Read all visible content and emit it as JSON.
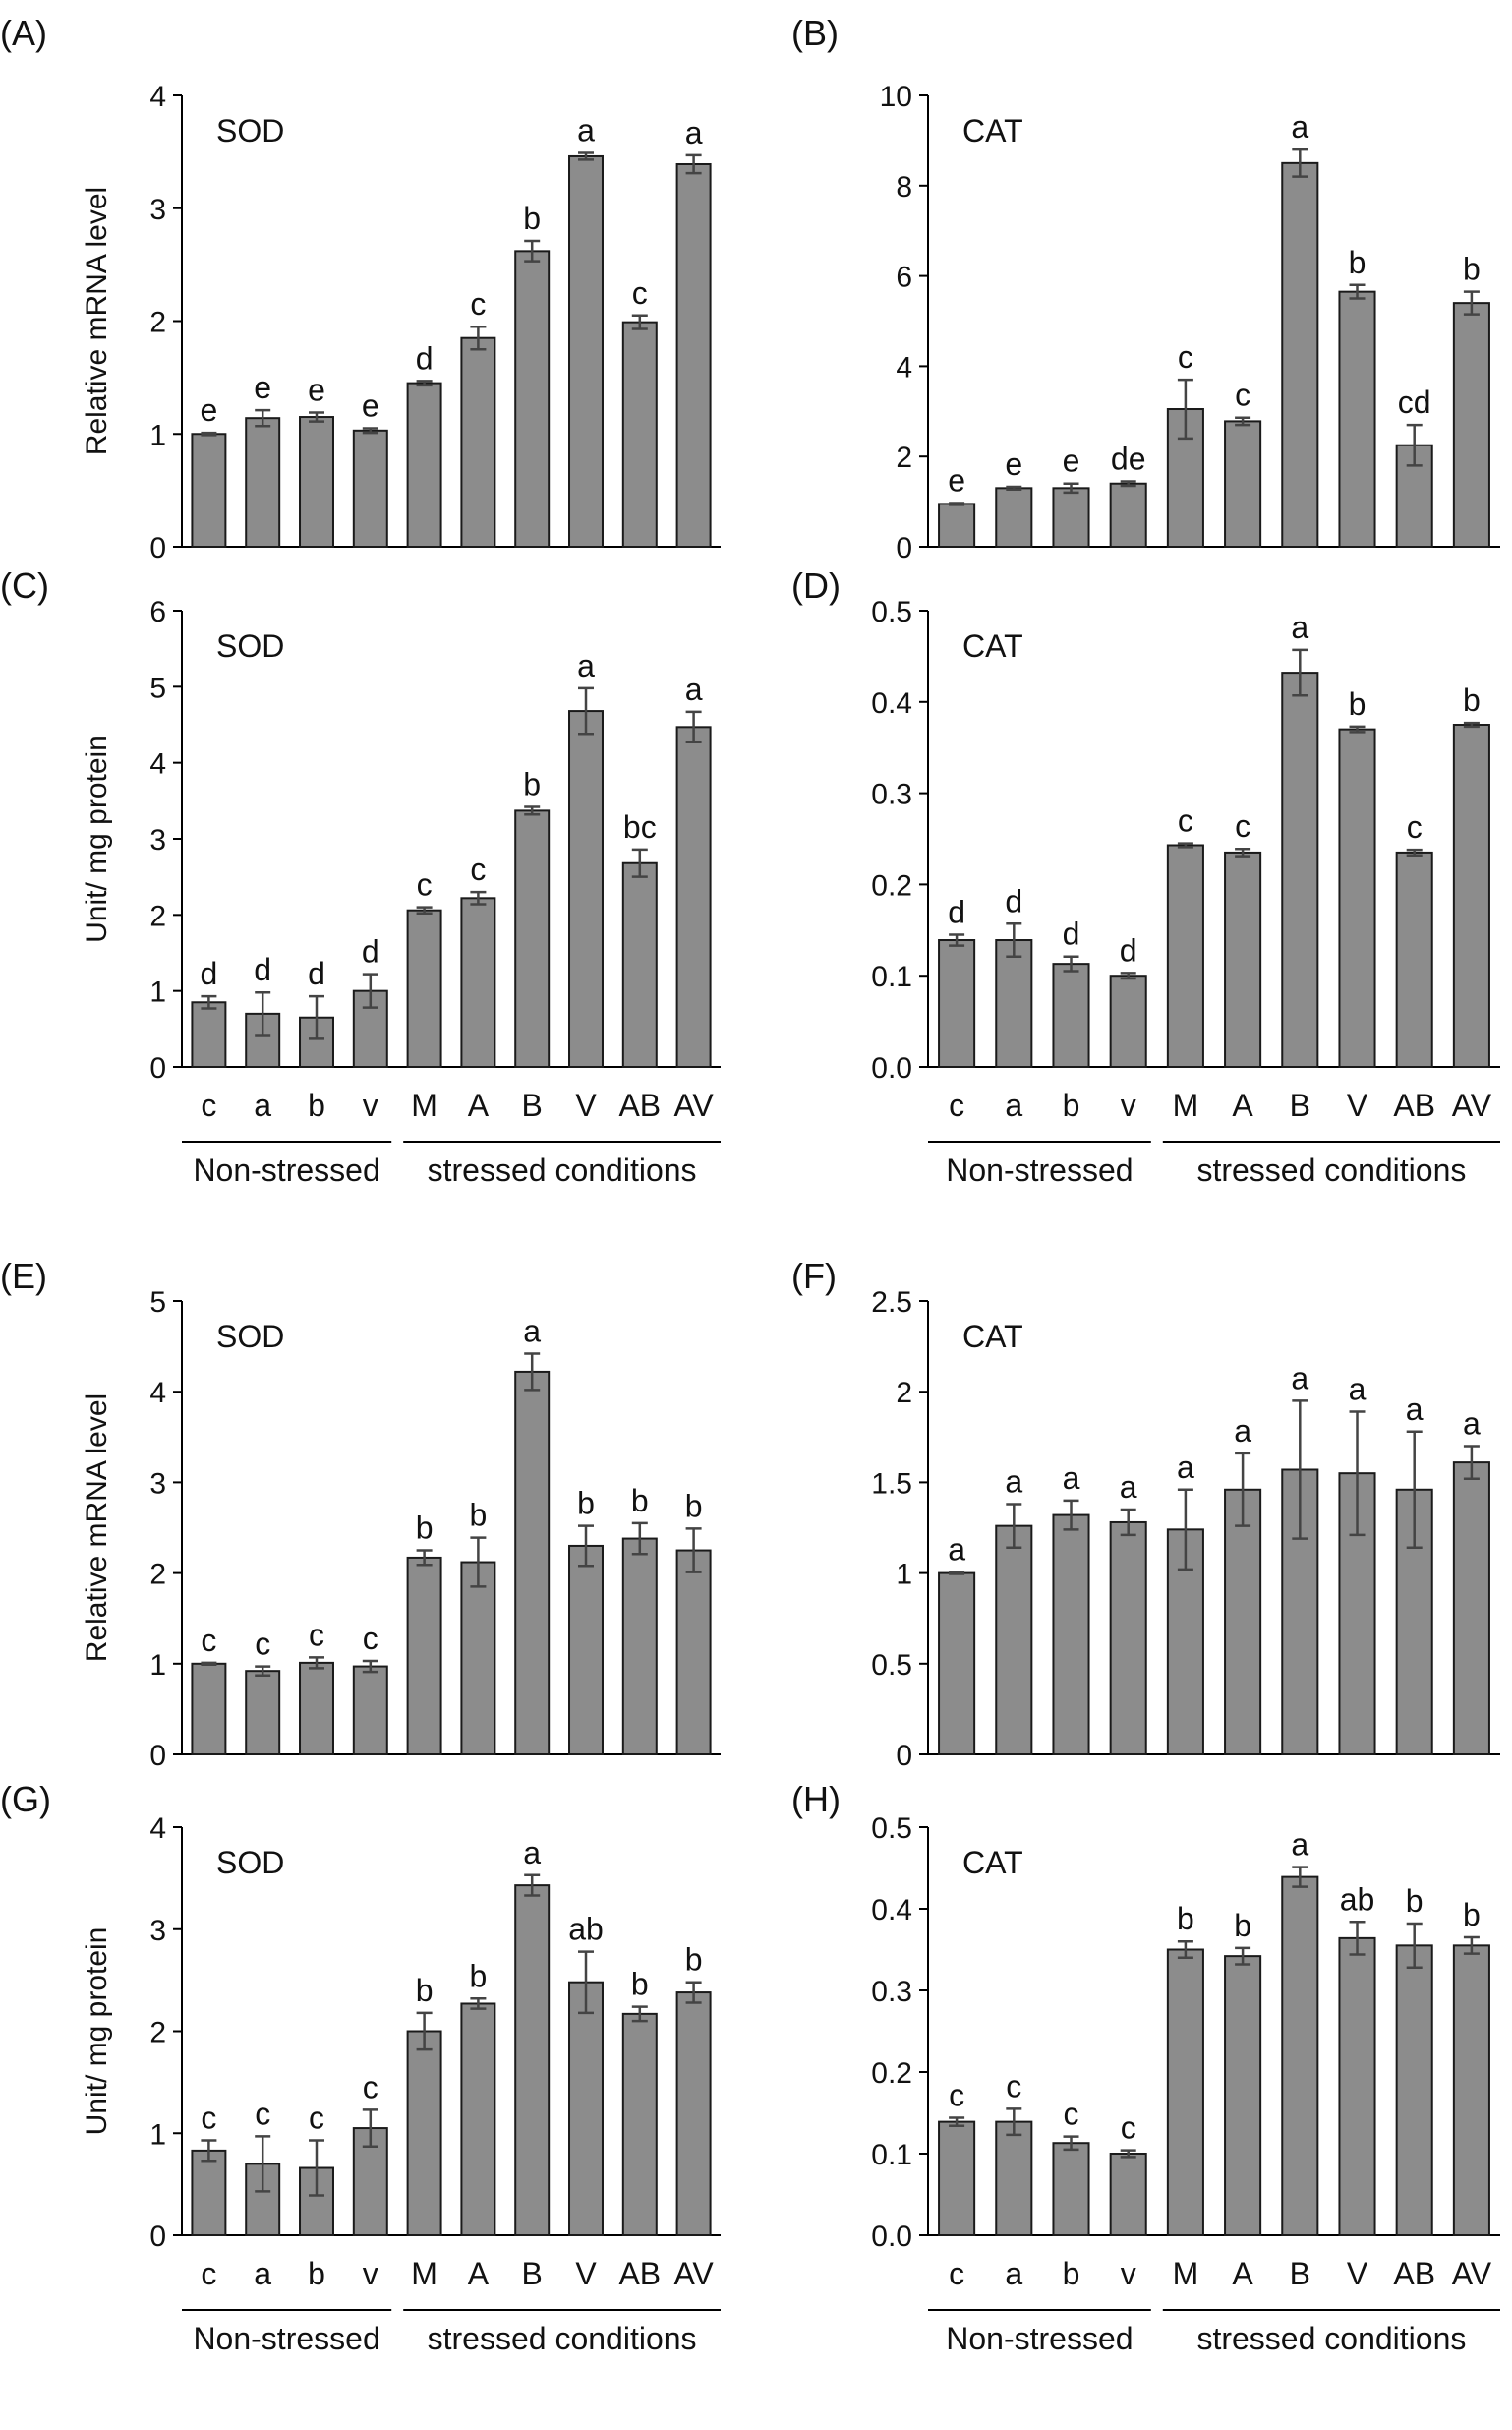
{
  "figure": {
    "group_labels": [
      "Non-stressed",
      "stressed conditions"
    ]
  },
  "style": {
    "bar_color": "#8c8c8c",
    "error_color": "#444444"
  },
  "chart_data": [
    {
      "panel": "(A)",
      "type": "bar",
      "title": "SOD",
      "ylabel": "Relative mRNA level",
      "ylim": [
        0,
        4
      ],
      "yticks": [
        "0",
        "1",
        "2",
        "3",
        "4"
      ],
      "ytick_values": [
        0,
        1,
        2,
        3,
        4
      ],
      "categories": [
        "c",
        "a",
        "b",
        "v",
        "M",
        "A",
        "B",
        "V",
        "AB",
        "AV"
      ],
      "show_categories": false,
      "values": [
        1.0,
        1.14,
        1.15,
        1.03,
        1.45,
        1.85,
        2.62,
        3.46,
        1.99,
        3.39
      ],
      "errors": [
        0.01,
        0.07,
        0.04,
        0.02,
        0.02,
        0.1,
        0.09,
        0.03,
        0.06,
        0.08
      ],
      "letters": [
        "e",
        "e",
        "e",
        "e",
        "d",
        "c",
        "b",
        "a",
        "c",
        "a"
      ]
    },
    {
      "panel": "(B)",
      "type": "bar",
      "title": "CAT",
      "ylabel": "",
      "ylim": [
        0,
        10
      ],
      "yticks": [
        "0",
        "2",
        "4",
        "6",
        "8",
        "10"
      ],
      "ytick_values": [
        0,
        2,
        4,
        6,
        8,
        10
      ],
      "categories": [
        "c",
        "a",
        "b",
        "v",
        "M",
        "A",
        "B",
        "V",
        "AB",
        "AV"
      ],
      "show_categories": false,
      "values": [
        0.95,
        1.3,
        1.3,
        1.4,
        3.05,
        2.78,
        8.5,
        5.65,
        2.25,
        5.4
      ],
      "errors": [
        0.02,
        0.03,
        0.1,
        0.05,
        0.65,
        0.08,
        0.3,
        0.15,
        0.45,
        0.25
      ],
      "letters": [
        "e",
        "e",
        "e",
        "de",
        "c",
        "c",
        "a",
        "b",
        "cd",
        "b"
      ]
    },
    {
      "panel": "(C)",
      "type": "bar",
      "title": "SOD",
      "ylabel": "Unit/ mg protein",
      "ylim": [
        0,
        6
      ],
      "yticks": [
        "0",
        "1",
        "2",
        "3",
        "4",
        "5",
        "6"
      ],
      "ytick_values": [
        0,
        1,
        2,
        3,
        4,
        5,
        6
      ],
      "categories": [
        "c",
        "a",
        "b",
        "v",
        "M",
        "A",
        "B",
        "V",
        "AB",
        "AV"
      ],
      "show_categories": true,
      "values": [
        0.85,
        0.7,
        0.65,
        1.0,
        2.06,
        2.22,
        3.37,
        4.68,
        2.68,
        4.47
      ],
      "errors": [
        0.08,
        0.28,
        0.28,
        0.22,
        0.04,
        0.08,
        0.05,
        0.3,
        0.18,
        0.2
      ],
      "letters": [
        "d",
        "d",
        "d",
        "d",
        "c",
        "c",
        "b",
        "a",
        "bc",
        "a"
      ]
    },
    {
      "panel": "(D)",
      "type": "bar",
      "title": "CAT",
      "ylabel": "",
      "ylim": [
        0,
        0.5
      ],
      "yticks": [
        "0.0",
        "0.1",
        "0.2",
        "0.3",
        "0.4",
        "0.5"
      ],
      "ytick_values": [
        0,
        0.1,
        0.2,
        0.3,
        0.4,
        0.5
      ],
      "categories": [
        "c",
        "a",
        "b",
        "v",
        "M",
        "A",
        "B",
        "V",
        "AB",
        "AV"
      ],
      "show_categories": true,
      "values": [
        0.139,
        0.139,
        0.113,
        0.1,
        0.243,
        0.235,
        0.432,
        0.37,
        0.235,
        0.375
      ],
      "errors": [
        0.006,
        0.018,
        0.008,
        0.003,
        0.002,
        0.004,
        0.025,
        0.003,
        0.003,
        0.002
      ],
      "letters": [
        "d",
        "d",
        "d",
        "d",
        "c",
        "c",
        "a",
        "b",
        "c",
        "b"
      ]
    },
    {
      "panel": "(E)",
      "type": "bar",
      "title": "SOD",
      "ylabel": "Relative mRNA level",
      "ylim": [
        0,
        5
      ],
      "yticks": [
        "0",
        "1",
        "2",
        "3",
        "4",
        "5"
      ],
      "ytick_values": [
        0,
        1,
        2,
        3,
        4,
        5
      ],
      "categories": [
        "c",
        "a",
        "b",
        "v",
        "M",
        "A",
        "B",
        "V",
        "AB",
        "AV"
      ],
      "show_categories": false,
      "values": [
        1.0,
        0.92,
        1.01,
        0.97,
        2.17,
        2.12,
        4.22,
        2.3,
        2.38,
        2.25
      ],
      "errors": [
        0.01,
        0.05,
        0.06,
        0.06,
        0.08,
        0.27,
        0.2,
        0.22,
        0.17,
        0.24
      ],
      "letters": [
        "c",
        "c",
        "c",
        "c",
        "b",
        "b",
        "a",
        "b",
        "b",
        "b"
      ]
    },
    {
      "panel": "(F)",
      "type": "bar",
      "title": "CAT",
      "ylabel": "",
      "ylim": [
        0,
        2.5
      ],
      "yticks": [
        "0",
        "0.5",
        "1",
        "1.5",
        "2",
        "2.5"
      ],
      "ytick_values": [
        0,
        0.5,
        1,
        1.5,
        2,
        2.5
      ],
      "categories": [
        "c",
        "a",
        "b",
        "v",
        "M",
        "A",
        "B",
        "V",
        "AB",
        "AV"
      ],
      "show_categories": false,
      "values": [
        1.0,
        1.26,
        1.32,
        1.28,
        1.24,
        1.46,
        1.57,
        1.55,
        1.46,
        1.61
      ],
      "errors": [
        0.005,
        0.12,
        0.08,
        0.07,
        0.22,
        0.2,
        0.38,
        0.34,
        0.32,
        0.09
      ],
      "letters": [
        "a",
        "a",
        "a",
        "a",
        "a",
        "a",
        "a",
        "a",
        "a",
        "a"
      ]
    },
    {
      "panel": "(G)",
      "type": "bar",
      "title": "SOD",
      "ylabel": "Unit/ mg protein",
      "ylim": [
        0,
        4
      ],
      "yticks": [
        "0",
        "1",
        "2",
        "3",
        "4"
      ],
      "ytick_values": [
        0,
        1,
        2,
        3,
        4
      ],
      "categories": [
        "c",
        "a",
        "b",
        "v",
        "M",
        "A",
        "B",
        "V",
        "AB",
        "AV"
      ],
      "show_categories": true,
      "values": [
        0.83,
        0.7,
        0.66,
        1.05,
        2.0,
        2.27,
        3.43,
        2.48,
        2.17,
        2.38
      ],
      "errors": [
        0.1,
        0.27,
        0.27,
        0.18,
        0.18,
        0.05,
        0.1,
        0.3,
        0.07,
        0.1
      ],
      "letters": [
        "c",
        "c",
        "c",
        "c",
        "b",
        "b",
        "a",
        "ab",
        "b",
        "b"
      ]
    },
    {
      "panel": "(H)",
      "type": "bar",
      "title": "CAT",
      "ylabel": "",
      "ylim": [
        0,
        0.5
      ],
      "yticks": [
        "0.0",
        "0.1",
        "0.2",
        "0.3",
        "0.4",
        "0.5"
      ],
      "ytick_values": [
        0,
        0.1,
        0.2,
        0.3,
        0.4,
        0.5
      ],
      "categories": [
        "c",
        "a",
        "b",
        "v",
        "M",
        "A",
        "B",
        "V",
        "AB",
        "AV"
      ],
      "show_categories": true,
      "values": [
        0.139,
        0.139,
        0.113,
        0.1,
        0.35,
        0.342,
        0.439,
        0.364,
        0.355,
        0.355
      ],
      "errors": [
        0.005,
        0.016,
        0.008,
        0.004,
        0.01,
        0.01,
        0.012,
        0.02,
        0.027,
        0.01
      ],
      "letters": [
        "c",
        "c",
        "c",
        "c",
        "b",
        "b",
        "a",
        "ab",
        "b",
        "b"
      ]
    }
  ]
}
